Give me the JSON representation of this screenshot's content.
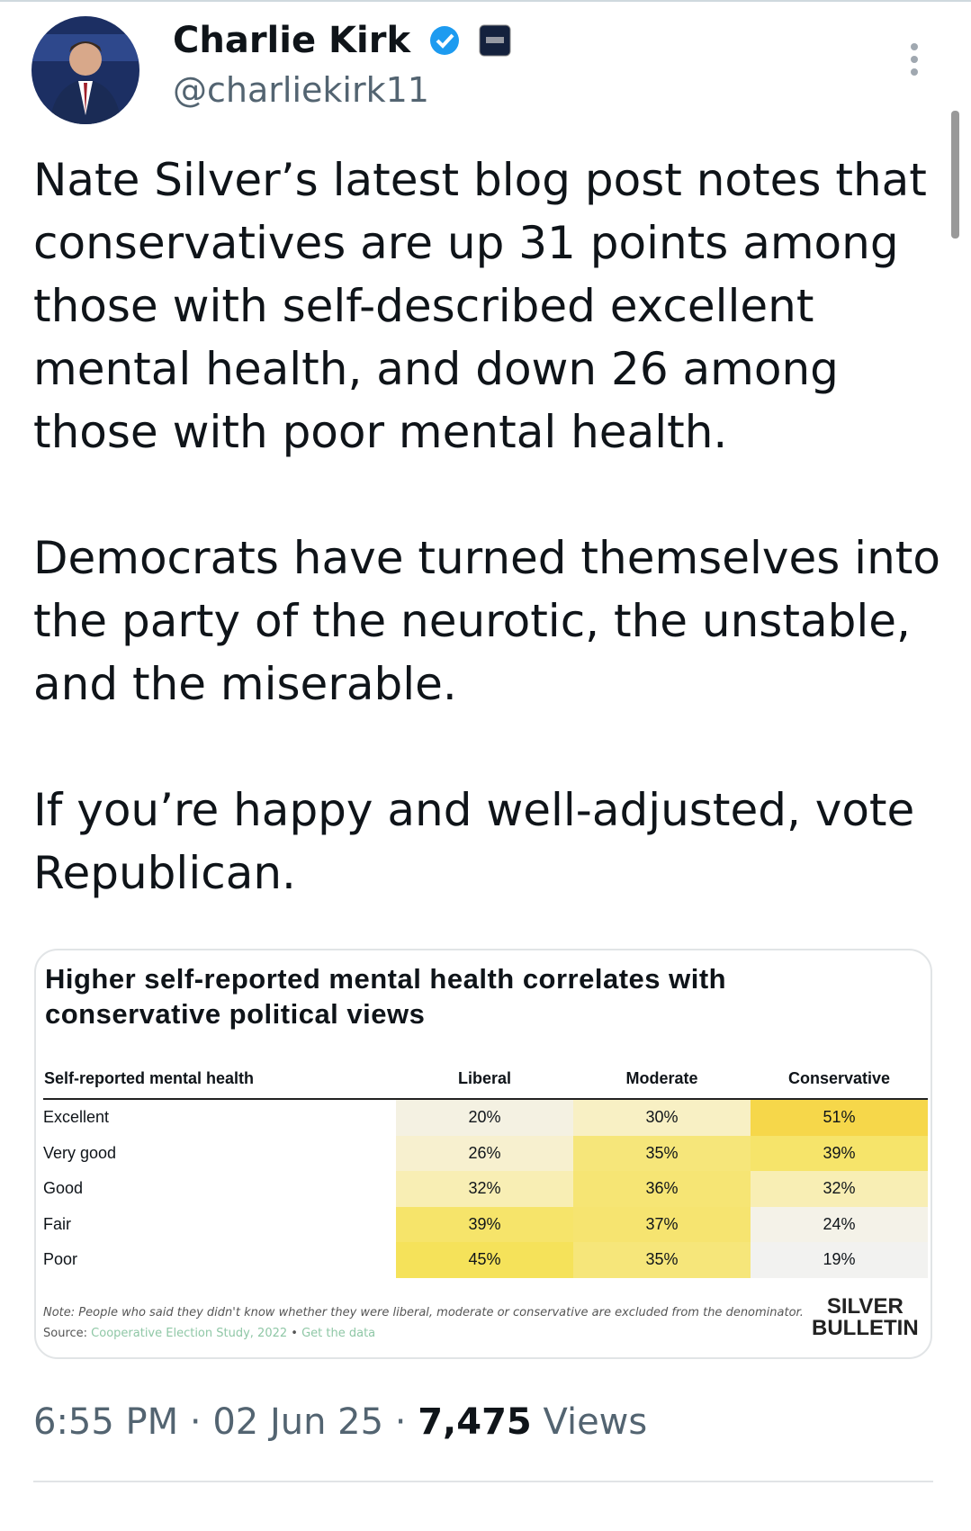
{
  "tweet": {
    "author": {
      "name": "Charlie Kirk",
      "handle": "@charliekirk11"
    },
    "paragraphs": [
      "Nate Silver’s latest blog post notes that conservatives are up 31 points among those with self-described excellent mental health, and down 26 among those with poor mental health.",
      "Democrats have turned themselves into the party of the neurotic, the unstable, and the miserable.",
      "If you’re happy and well-adjusted, vote Republican."
    ],
    "image": {
      "title": "Higher self-reported mental health correlates with conservative political views",
      "table": {
        "header": [
          "Self-reported mental health",
          "Liberal",
          "Moderate",
          "Conservative"
        ],
        "rows": [
          [
            "Excellent",
            "20%",
            "30%",
            "51%"
          ],
          [
            "Very good",
            "26%",
            "35%",
            "39%"
          ],
          [
            "Good",
            "32%",
            "36%",
            "32%"
          ],
          [
            "Fair",
            "39%",
            "37%",
            "24%"
          ],
          [
            "Poor",
            "45%",
            "35%",
            "19%"
          ]
        ]
      },
      "note": "Note: People who said they didn't know whether they were liberal, moderate or conservative are excluded from the denominator.",
      "source_label": "Source:",
      "source": "Cooperative Election Study, 2022",
      "source_separator": "•",
      "data_link": "Get the data",
      "logo": [
        "SILVER",
        "BULLETIN"
      ]
    },
    "footer": {
      "time": "6:55 PM",
      "separator": "·",
      "date": "02 Jun 25",
      "views": "7,475",
      "views_label": "Views"
    }
  }
}
